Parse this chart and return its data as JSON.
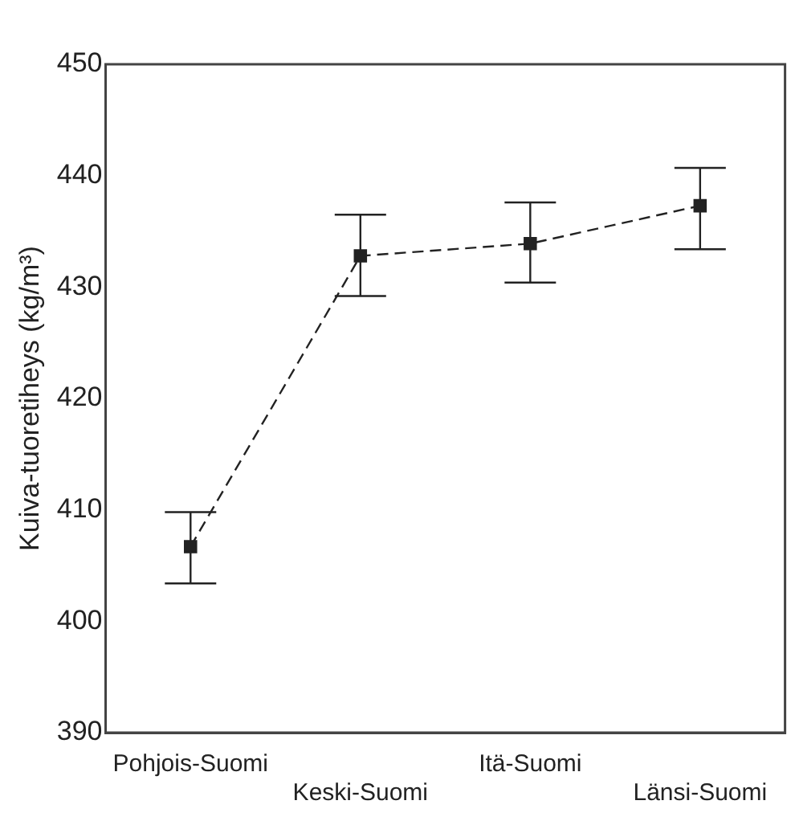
{
  "chart_data": {
    "type": "line",
    "ylabel": "Kuiva-tuoretiheys (kg/m³)",
    "categories": [
      "Pohjois-Suomi",
      "Keski-Suomi",
      "Itä-Suomi",
      "Länsi-Suomi"
    ],
    "color": "#222222",
    "values": [
      406.7,
      432.8,
      433.9,
      437.3
    ],
    "errors": [
      [
        403.4,
        409.8
      ],
      [
        429.2,
        436.5
      ],
      [
        430.4,
        437.6
      ],
      [
        433.4,
        440.7
      ]
    ],
    "ylim": [
      390,
      450
    ],
    "yticks": [
      390,
      400,
      410,
      420,
      430,
      440,
      450
    ],
    "grid": false,
    "legend": false,
    "marker": "square",
    "line_style": "dashed"
  }
}
